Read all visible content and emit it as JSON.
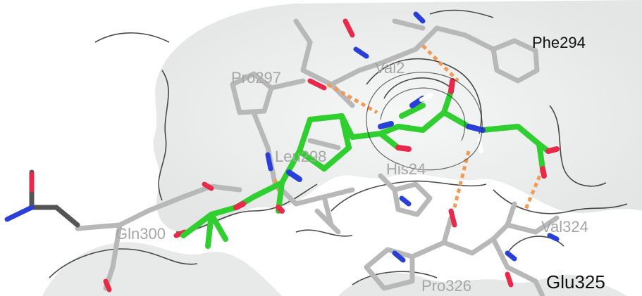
{
  "colors": {
    "ligand_carbon": "#2fcf2f",
    "protein_carbon": "#b8b8b8",
    "oxygen": "#e8294a",
    "nitrogen": "#2a3fd8",
    "hbond": "#f29a55",
    "surface": "#e9eaea",
    "surface_edge": "#2b2b2b",
    "label_grey": "#a6a6a6",
    "label_dark": "#111111"
  },
  "labels": {
    "phe294": "Phe294",
    "val": "Val2",
    "pro297": "Pro297",
    "leu298": "Leu298",
    "his": "His24",
    "gln300": "Gln300",
    "val324": "Val324",
    "pro326": "Pro326",
    "glu325": "Glu325"
  }
}
